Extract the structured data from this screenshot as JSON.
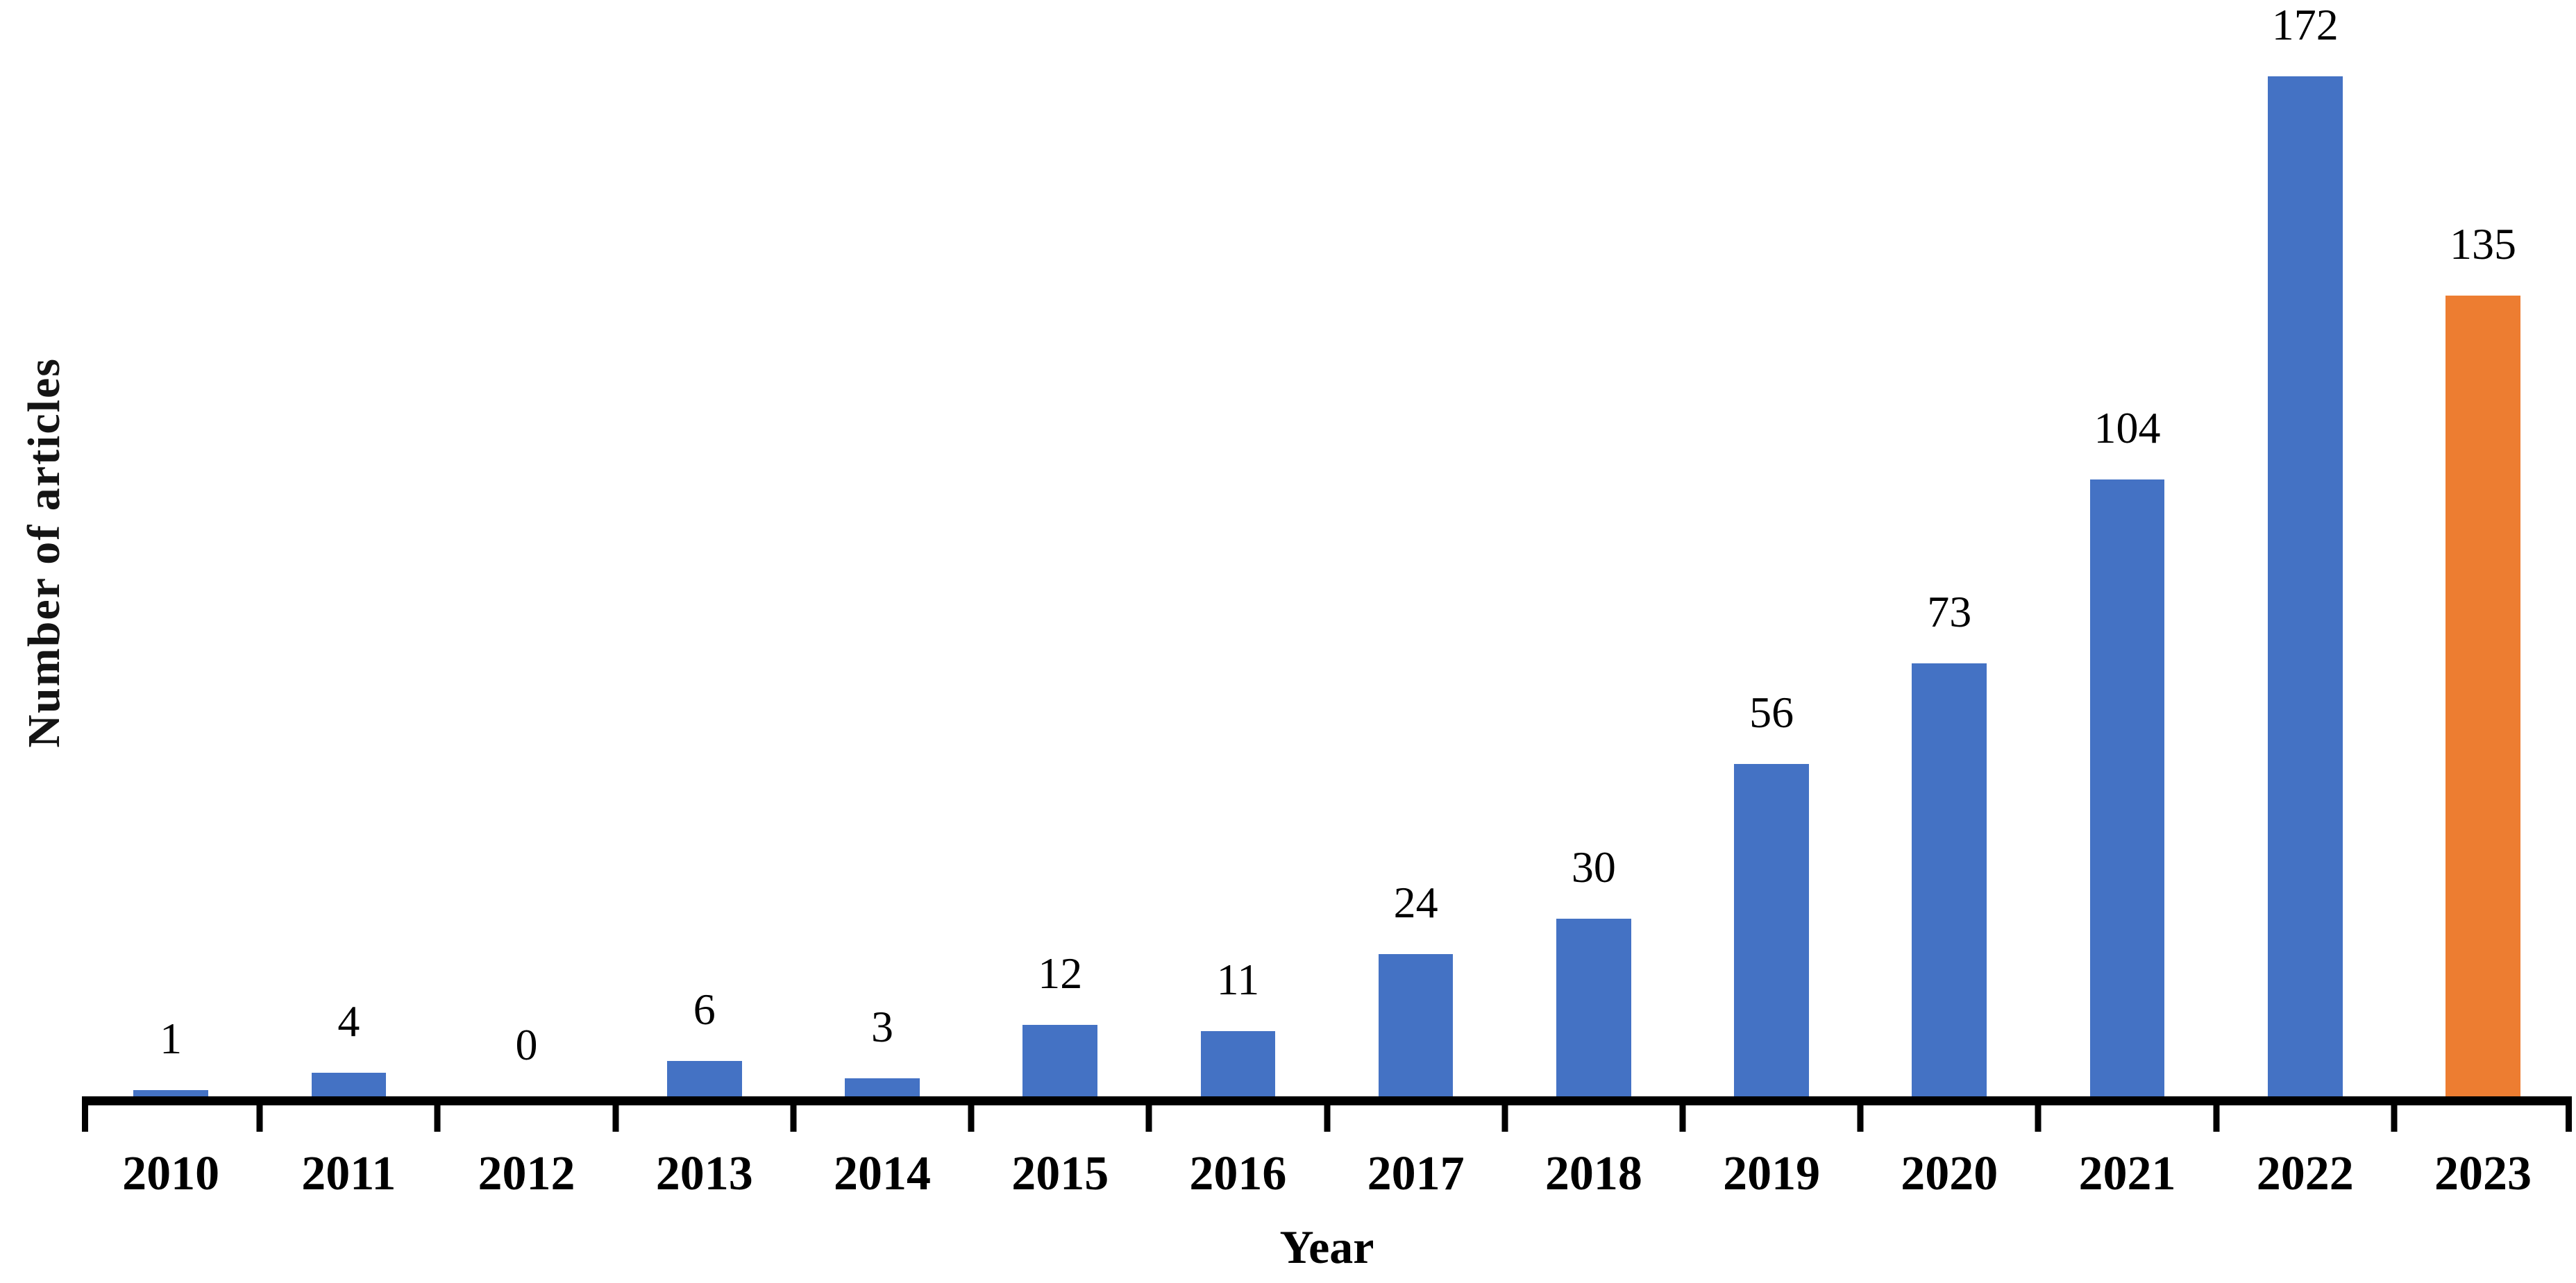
{
  "chart_data": {
    "type": "bar",
    "title": "",
    "xlabel": "Year",
    "ylabel": "Number of articles",
    "categories": [
      "2010",
      "2011",
      "2012",
      "2013",
      "2014",
      "2015",
      "2016",
      "2017",
      "2018",
      "2019",
      "2020",
      "2021",
      "2022",
      "2023"
    ],
    "values": [
      1,
      4,
      0,
      6,
      3,
      12,
      11,
      24,
      30,
      56,
      73,
      104,
      172,
      135
    ],
    "data_labels_shown": true,
    "ylim": [
      0,
      172
    ],
    "grid": false,
    "legend": "none",
    "colors": {
      "bar_default": "#4472C4",
      "bar_highlight": "#ED7D31",
      "axis": "#000000",
      "text": "#000000"
    },
    "highlight_category": "2023"
  }
}
